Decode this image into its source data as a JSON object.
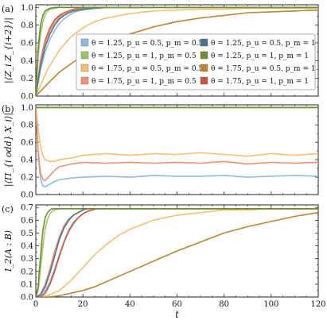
{
  "colors": {
    "c1": "#8fbadb",
    "c2": "#9dc46a",
    "c3": "#f2c073",
    "c4": "#ee9274",
    "c5": "#4f7290",
    "c6": "#6f8f2f",
    "c7": "#b8862f",
    "c8": "#c9553f"
  },
  "legend": [
    "θ = 1.25, p_u = 0.5, p_m = 0.5",
    "θ = 1.25, p_u = 0.5, p_m = 1",
    "θ = 1.25, p_u = 1, p_m = 0.5",
    "θ = 1.25, p_u = 1, p_m = 1",
    "θ = 1.75, p_u = 0.5, p_m = 0.5",
    "θ = 1.75, p_u = 0.5, p_m = 1",
    "θ = 1.75, p_u = 1, p_m = 0.5",
    "θ = 1.75, p_u = 1, p_m = 1"
  ],
  "chart_data": [
    {
      "panel_label": "(a)",
      "type": "line",
      "ylabel": "|⟨Z_i Z_{i+2}⟩|",
      "xlabel": "",
      "xlim": [
        0,
        120
      ],
      "ylim": [
        0,
        1.03
      ],
      "yticks": [
        "0.0",
        "0.2",
        "0.4",
        "0.6",
        "0.8",
        "1.0"
      ],
      "series": [
        {
          "name": "θ = 1.25, p_u = 0.5, p_m = 0.5",
          "color": "c1",
          "x": [
            0,
            2,
            4,
            6,
            8,
            10,
            12,
            14,
            16,
            18,
            20,
            25,
            30,
            40,
            60,
            80,
            100,
            120
          ],
          "y": [
            0,
            0.3,
            0.5,
            0.64,
            0.74,
            0.82,
            0.87,
            0.91,
            0.94,
            0.96,
            0.97,
            0.99,
            1.0,
            1.0,
            1.0,
            1.0,
            1.0,
            1.0
          ]
        },
        {
          "name": "θ = 1.25, p_u = 0.5, p_m = 1",
          "color": "c5",
          "x": [
            0,
            2,
            4,
            6,
            8,
            10,
            12,
            14,
            16,
            18,
            20,
            25,
            30,
            40,
            60,
            80,
            100,
            120
          ],
          "y": [
            0,
            0.34,
            0.56,
            0.7,
            0.8,
            0.87,
            0.91,
            0.94,
            0.96,
            0.97,
            0.98,
            0.99,
            1.0,
            1.0,
            1.0,
            1.0,
            1.0,
            1.0
          ]
        },
        {
          "name": "θ = 1.25, p_u = 1, p_m = 0.5",
          "color": "c2",
          "x": [
            0,
            1,
            2,
            3,
            4,
            5,
            6,
            8,
            10,
            14,
            20,
            120
          ],
          "y": [
            0,
            0.45,
            0.7,
            0.84,
            0.92,
            0.96,
            0.98,
            0.99,
            1.0,
            1.0,
            1.0,
            1.0
          ]
        },
        {
          "name": "θ = 1.25, p_u = 1, p_m = 1",
          "color": "c6",
          "x": [
            0,
            1,
            2,
            3,
            4,
            5,
            6,
            8,
            10,
            120
          ],
          "y": [
            0,
            0.55,
            0.8,
            0.91,
            0.96,
            0.98,
            0.99,
            1.0,
            1.0,
            1.0
          ]
        },
        {
          "name": "θ = 1.75, p_u = 0.5, p_m = 0.5",
          "color": "c3",
          "x": [
            0,
            5,
            10,
            15,
            20,
            25,
            30,
            40,
            50,
            60,
            70,
            80,
            90,
            100,
            110,
            120
          ],
          "y": [
            0,
            0.3,
            0.52,
            0.67,
            0.77,
            0.84,
            0.88,
            0.93,
            0.96,
            0.97,
            0.98,
            0.98,
            0.99,
            0.99,
            0.99,
            0.99
          ]
        },
        {
          "name": "θ = 1.75, p_u = 0.5, p_m = 1",
          "color": "c7",
          "x": [
            0,
            5,
            10,
            20,
            30,
            40,
            50,
            60,
            70,
            80,
            90,
            100,
            110,
            120
          ],
          "y": [
            0,
            0.14,
            0.27,
            0.46,
            0.6,
            0.7,
            0.78,
            0.84,
            0.88,
            0.91,
            0.94,
            0.95,
            0.96,
            0.97
          ]
        },
        {
          "name": "θ = 1.75, p_u = 1, p_m = 0.5",
          "color": "c4",
          "x": [
            0,
            2,
            4,
            6,
            8,
            10,
            12,
            14,
            16,
            18,
            20,
            25,
            30,
            40,
            60,
            120
          ],
          "y": [
            0,
            0.38,
            0.6,
            0.74,
            0.83,
            0.89,
            0.93,
            0.95,
            0.97,
            0.98,
            0.99,
            1.0,
            1.0,
            1.0,
            1.0,
            1.0
          ]
        },
        {
          "name": "θ = 1.75, p_u = 1, p_m = 1",
          "color": "c8",
          "x": [
            0,
            2,
            4,
            6,
            8,
            10,
            12,
            14,
            16,
            18,
            20,
            25,
            30,
            40,
            60,
            120
          ],
          "y": [
            0,
            0.4,
            0.63,
            0.77,
            0.86,
            0.91,
            0.94,
            0.96,
            0.98,
            0.99,
            0.99,
            1.0,
            1.0,
            1.0,
            1.0,
            1.0
          ]
        }
      ]
    },
    {
      "panel_label": "(b)",
      "type": "line",
      "ylabel": "|⟨Π_{i odd} X_i⟩|",
      "xlabel": "",
      "xlim": [
        0,
        120
      ],
      "ylim": [
        0,
        1.03
      ],
      "yticks": [
        "0.0",
        "0.2",
        "0.4",
        "0.6",
        "0.8",
        "1.0"
      ],
      "series": [
        {
          "name": "θ = 1.25, p_u = 0.5, p_m = 0.5",
          "color": "c1",
          "x": [
            0,
            1,
            2,
            3,
            4,
            6,
            8,
            10,
            15,
            20,
            30,
            40,
            50,
            60,
            70,
            80,
            90,
            100,
            110,
            120
          ],
          "y": [
            1,
            0.45,
            0.18,
            0.1,
            0.09,
            0.12,
            0.15,
            0.17,
            0.19,
            0.2,
            0.21,
            0.2,
            0.22,
            0.21,
            0.21,
            0.22,
            0.2,
            0.21,
            0.22,
            0.21
          ]
        },
        {
          "name": "θ = 1.25, p_u = 0.5, p_m = 1",
          "color": "c5",
          "x": [
            0,
            120
          ],
          "y": [
            1,
            1
          ]
        },
        {
          "name": "θ = 1.25, p_u = 1, p_m = 0.5",
          "color": "c2",
          "x": [
            0,
            120
          ],
          "y": [
            1,
            1
          ]
        },
        {
          "name": "θ = 1.25, p_u = 1, p_m = 1",
          "color": "c6",
          "x": [
            0,
            120
          ],
          "y": [
            1,
            1
          ]
        },
        {
          "name": "θ = 1.75, p_u = 0.5, p_m = 0.5",
          "color": "c3",
          "x": [
            0,
            1,
            2,
            3,
            4,
            6,
            8,
            10,
            15,
            20,
            30,
            40,
            50,
            60,
            70,
            80,
            90,
            100,
            110,
            120
          ],
          "y": [
            1,
            0.75,
            0.55,
            0.45,
            0.4,
            0.38,
            0.38,
            0.4,
            0.42,
            0.45,
            0.47,
            0.45,
            0.47,
            0.46,
            0.48,
            0.46,
            0.44,
            0.47,
            0.45,
            0.47
          ]
        },
        {
          "name": "θ = 1.75, p_u = 0.5, p_m = 1",
          "color": "c7",
          "x": [
            0,
            120
          ],
          "y": [
            1,
            1
          ]
        },
        {
          "name": "θ = 1.75, p_u = 1, p_m = 0.5",
          "color": "c4",
          "x": [
            0,
            1,
            2,
            3,
            4,
            6,
            8,
            10,
            15,
            20,
            30,
            40,
            50,
            60,
            70,
            80,
            90,
            100,
            110,
            120
          ],
          "y": [
            1,
            0.5,
            0.25,
            0.17,
            0.16,
            0.22,
            0.28,
            0.32,
            0.35,
            0.37,
            0.36,
            0.37,
            0.36,
            0.37,
            0.36,
            0.38,
            0.35,
            0.37,
            0.36,
            0.37
          ]
        },
        {
          "name": "θ = 1.75, p_u = 1, p_m = 1",
          "color": "c8",
          "x": [
            0,
            120
          ],
          "y": [
            1,
            1
          ]
        }
      ]
    },
    {
      "panel_label": "(c)",
      "type": "line",
      "ylabel": "I_2(A : B)",
      "xlabel": "t",
      "xlim": [
        0,
        120
      ],
      "ylim": [
        0,
        0.72
      ],
      "yticks": [
        "0.0",
        "0.1",
        "0.2",
        "0.3",
        "0.4",
        "0.5",
        "0.6",
        "0.7"
      ],
      "xticks": [
        "0",
        "20",
        "40",
        "60",
        "80",
        "100",
        "120"
      ],
      "series": [
        {
          "name": "θ = 1.25, p_u = 0.5, p_m = 0.5",
          "color": "c1",
          "x": [
            0,
            2,
            4,
            6,
            8,
            10,
            12,
            14,
            16,
            18,
            20,
            22,
            24,
            26,
            28,
            30,
            35,
            40,
            120
          ],
          "y": [
            0,
            0.01,
            0.05,
            0.12,
            0.22,
            0.33,
            0.43,
            0.51,
            0.57,
            0.62,
            0.65,
            0.67,
            0.68,
            0.69,
            0.69,
            0.69,
            0.69,
            0.69,
            0.69
          ]
        },
        {
          "name": "θ = 1.25, p_u = 0.5, p_m = 1",
          "color": "c5",
          "x": [
            0,
            2,
            4,
            6,
            8,
            10,
            12,
            14,
            16,
            18,
            20,
            22,
            25,
            30,
            120
          ],
          "y": [
            0,
            0.02,
            0.08,
            0.19,
            0.32,
            0.45,
            0.54,
            0.6,
            0.64,
            0.66,
            0.68,
            0.69,
            0.69,
            0.69,
            0.69
          ]
        },
        {
          "name": "θ = 1.25, p_u = 1, p_m = 0.5",
          "color": "c2",
          "x": [
            0,
            1,
            2,
            3,
            4,
            5,
            6,
            7,
            8,
            10,
            12,
            14,
            120
          ],
          "y": [
            0,
            0.05,
            0.22,
            0.4,
            0.53,
            0.61,
            0.65,
            0.67,
            0.68,
            0.69,
            0.69,
            0.69,
            0.69
          ]
        },
        {
          "name": "θ = 1.25, p_u = 1, p_m = 1",
          "color": "c6",
          "x": [
            0,
            1,
            2,
            3,
            4,
            5,
            6,
            7,
            8,
            10,
            120
          ],
          "y": [
            0,
            0.08,
            0.32,
            0.52,
            0.62,
            0.66,
            0.68,
            0.69,
            0.69,
            0.69,
            0.69
          ]
        },
        {
          "name": "θ = 1.75, p_u = 0.5, p_m = 0.5",
          "color": "c3",
          "x": [
            0,
            5,
            10,
            15,
            20,
            25,
            30,
            35,
            40,
            50,
            60,
            70,
            80,
            90,
            100,
            110,
            120
          ],
          "y": [
            0,
            0.01,
            0.05,
            0.13,
            0.23,
            0.33,
            0.41,
            0.48,
            0.53,
            0.6,
            0.64,
            0.66,
            0.68,
            0.68,
            0.69,
            0.69,
            0.69
          ]
        },
        {
          "name": "θ = 1.75, p_u = 0.5, p_m = 1",
          "color": "c7",
          "x": [
            0,
            5,
            10,
            15,
            20,
            25,
            30,
            40,
            50,
            60,
            70,
            80,
            90,
            100,
            110,
            120
          ],
          "y": [
            0,
            0.0,
            0.01,
            0.03,
            0.05,
            0.08,
            0.12,
            0.2,
            0.28,
            0.36,
            0.43,
            0.5,
            0.55,
            0.59,
            0.63,
            0.66
          ]
        },
        {
          "name": "θ = 1.75, p_u = 1, p_m = 0.5",
          "color": "c4",
          "x": [
            0,
            2,
            4,
            6,
            8,
            10,
            12,
            14,
            16,
            18,
            20,
            22,
            25,
            30,
            120
          ],
          "y": [
            0,
            0.02,
            0.1,
            0.22,
            0.36,
            0.47,
            0.56,
            0.61,
            0.64,
            0.66,
            0.68,
            0.69,
            0.69,
            0.69,
            0.69
          ]
        },
        {
          "name": "θ = 1.75, p_u = 1, p_m = 1",
          "color": "c8",
          "x": [
            0,
            2,
            4,
            6,
            8,
            10,
            12,
            14,
            16,
            18,
            20,
            22,
            24,
            26,
            28,
            30,
            120
          ],
          "y": [
            0,
            0.0,
            0.03,
            0.1,
            0.2,
            0.32,
            0.43,
            0.52,
            0.58,
            0.62,
            0.65,
            0.67,
            0.68,
            0.69,
            0.69,
            0.69,
            0.69
          ]
        }
      ]
    }
  ]
}
